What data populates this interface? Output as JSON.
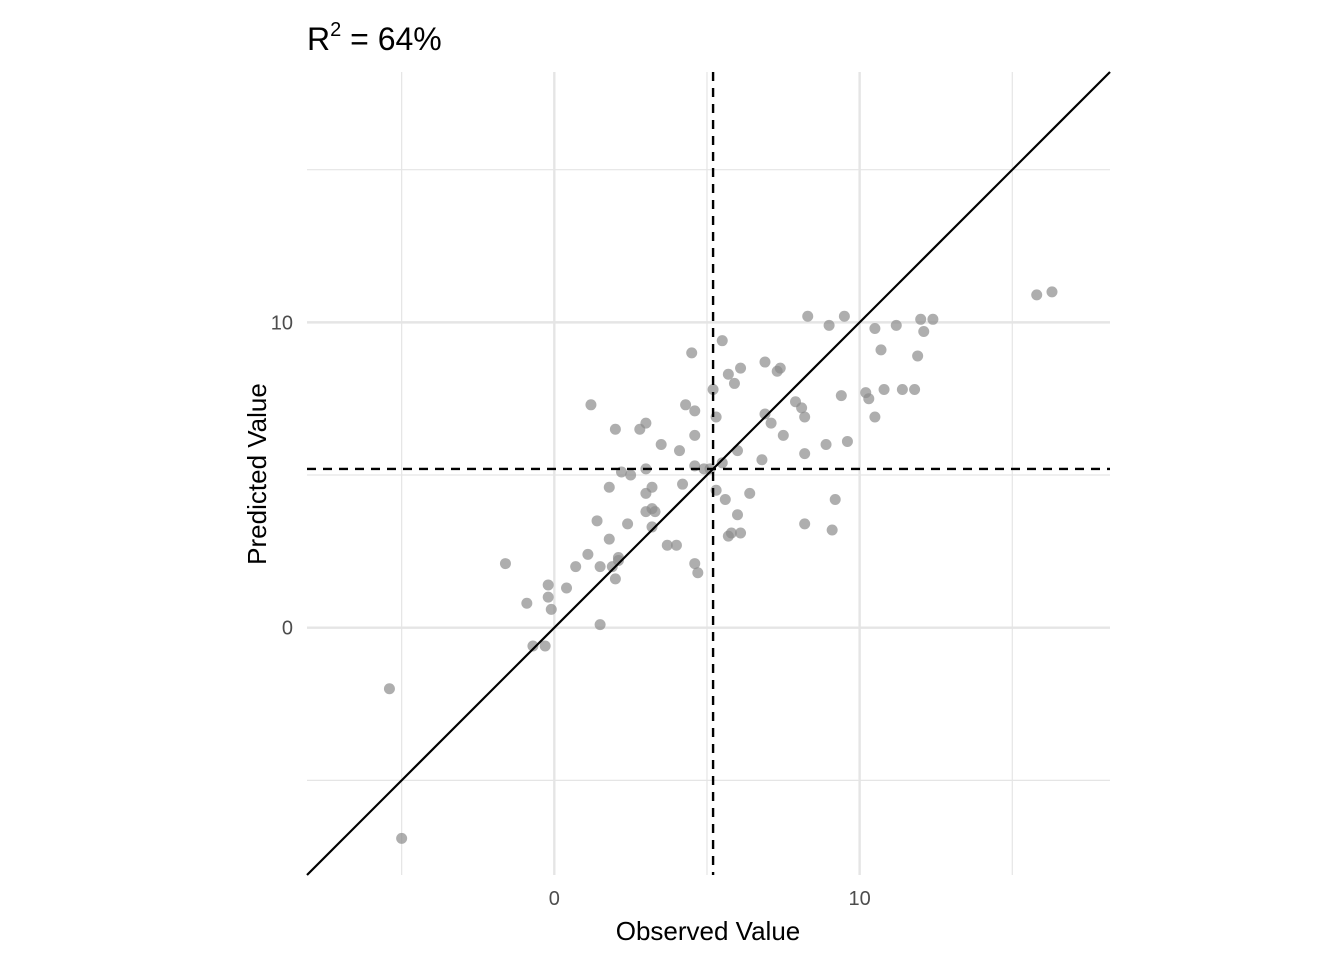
{
  "chart_data": {
    "type": "scatter",
    "title_prefix": "R",
    "title_superscript": "2",
    "title_suffix": " = 64%",
    "xlabel": "Observed Value",
    "ylabel": "Predicted Value",
    "xlim": [
      -8.1,
      18.2
    ],
    "ylim": [
      -8.1,
      18.2
    ],
    "major_ticks": [
      0,
      10
    ],
    "major_tick_labels": [
      "0",
      "10"
    ],
    "minor_gridlines": [
      -5,
      5,
      15
    ],
    "grid": true,
    "reference_lines": {
      "identity": true,
      "mean_observed": 5.2,
      "mean_predicted": 5.2
    },
    "colors": {
      "points": "#8c8c8c",
      "grid": "#e5e5e5",
      "lines": "#000000"
    },
    "points": [
      [
        -5.4,
        -2.0
      ],
      [
        -5.0,
        -6.9
      ],
      [
        -1.6,
        2.1
      ],
      [
        -0.9,
        0.8
      ],
      [
        -0.7,
        -0.6
      ],
      [
        -0.3,
        -0.6
      ],
      [
        -0.2,
        1.4
      ],
      [
        -0.2,
        1.0
      ],
      [
        -0.1,
        0.6
      ],
      [
        0.4,
        1.3
      ],
      [
        0.7,
        2.0
      ],
      [
        1.1,
        2.4
      ],
      [
        1.2,
        7.3
      ],
      [
        1.4,
        3.5
      ],
      [
        1.5,
        0.1
      ],
      [
        1.5,
        2.0
      ],
      [
        1.8,
        2.9
      ],
      [
        1.8,
        4.6
      ],
      [
        1.9,
        2.0
      ],
      [
        2.0,
        6.5
      ],
      [
        2.0,
        1.6
      ],
      [
        2.1,
        2.3
      ],
      [
        2.1,
        2.2
      ],
      [
        2.2,
        5.1
      ],
      [
        2.4,
        3.4
      ],
      [
        2.5,
        5.0
      ],
      [
        2.8,
        6.5
      ],
      [
        3.0,
        6.7
      ],
      [
        3.0,
        5.2
      ],
      [
        3.0,
        4.4
      ],
      [
        3.0,
        3.8
      ],
      [
        3.2,
        3.3
      ],
      [
        3.2,
        4.6
      ],
      [
        3.2,
        3.9
      ],
      [
        3.3,
        3.8
      ],
      [
        3.5,
        6.0
      ],
      [
        3.7,
        2.7
      ],
      [
        4.0,
        2.7
      ],
      [
        4.1,
        5.8
      ],
      [
        4.2,
        4.7
      ],
      [
        4.3,
        7.3
      ],
      [
        4.5,
        9.0
      ],
      [
        4.6,
        6.3
      ],
      [
        4.6,
        7.1
      ],
      [
        4.6,
        2.1
      ],
      [
        4.6,
        5.3
      ],
      [
        4.7,
        1.8
      ],
      [
        4.9,
        5.2
      ],
      [
        5.1,
        5.2
      ],
      [
        5.2,
        7.8
      ],
      [
        5.3,
        6.9
      ],
      [
        5.3,
        4.5
      ],
      [
        5.5,
        5.4
      ],
      [
        5.5,
        9.4
      ],
      [
        5.6,
        4.2
      ],
      [
        5.7,
        8.3
      ],
      [
        5.7,
        3.0
      ],
      [
        5.8,
        3.1
      ],
      [
        5.9,
        8.0
      ],
      [
        6.0,
        5.8
      ],
      [
        6.0,
        3.7
      ],
      [
        6.1,
        8.5
      ],
      [
        6.1,
        3.1
      ],
      [
        6.4,
        4.4
      ],
      [
        6.8,
        5.5
      ],
      [
        6.9,
        8.7
      ],
      [
        6.9,
        7.0
      ],
      [
        7.1,
        6.7
      ],
      [
        7.3,
        8.4
      ],
      [
        7.4,
        8.5
      ],
      [
        7.5,
        6.3
      ],
      [
        7.9,
        7.4
      ],
      [
        8.1,
        7.2
      ],
      [
        8.2,
        6.9
      ],
      [
        8.2,
        5.7
      ],
      [
        8.2,
        3.4
      ],
      [
        8.3,
        10.2
      ],
      [
        8.9,
        6.0
      ],
      [
        9.0,
        9.9
      ],
      [
        9.1,
        3.2
      ],
      [
        9.2,
        4.2
      ],
      [
        9.4,
        7.6
      ],
      [
        9.5,
        10.2
      ],
      [
        9.6,
        6.1
      ],
      [
        10.2,
        7.7
      ],
      [
        10.3,
        7.5
      ],
      [
        10.5,
        9.8
      ],
      [
        10.5,
        6.9
      ],
      [
        10.7,
        9.1
      ],
      [
        10.8,
        7.8
      ],
      [
        11.2,
        9.9
      ],
      [
        11.4,
        7.8
      ],
      [
        11.8,
        7.8
      ],
      [
        11.9,
        8.9
      ],
      [
        12.0,
        10.1
      ],
      [
        12.1,
        9.7
      ],
      [
        12.4,
        10.1
      ],
      [
        15.8,
        10.9
      ],
      [
        16.3,
        11.0
      ]
    ]
  }
}
